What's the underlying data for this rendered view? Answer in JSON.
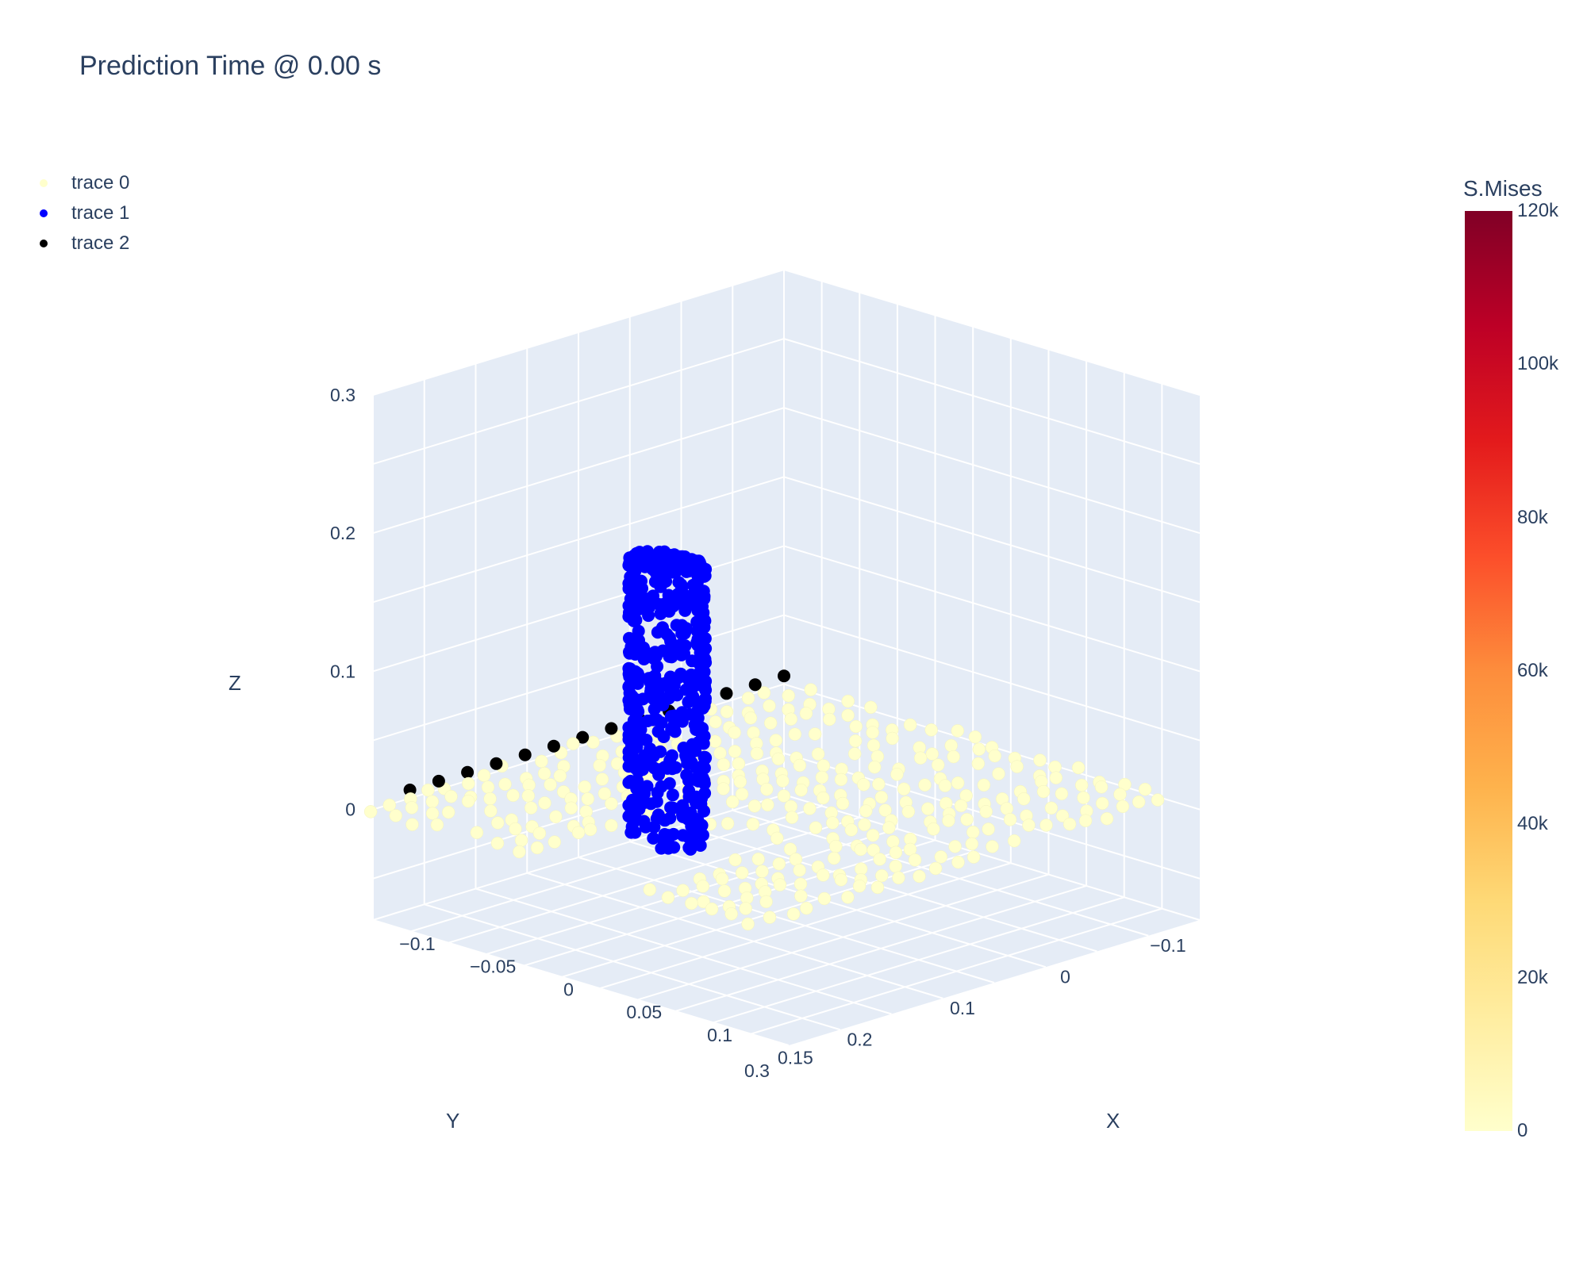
{
  "chart_data": {
    "type": "scatter3d",
    "title": "Prediction Time @ 0.00 s",
    "axes": {
      "x": {
        "label": "X",
        "ticks": [
          "−0.1",
          "−0.05",
          "0",
          "0.05",
          "0.1",
          "0.15"
        ],
        "range": [
          -0.1,
          0.175
        ]
      },
      "y": {
        "label": "Y",
        "ticks": [
          "−0.1",
          "0",
          "0.1",
          "0.2",
          "0.3"
        ],
        "range": [
          -0.1,
          0.3
        ]
      },
      "z": {
        "label": "Z",
        "ticks": [
          "0",
          "0.1",
          "0.2",
          "0.3"
        ],
        "range": [
          -0.08,
          0.3
        ]
      }
    },
    "legend_position": "top-left",
    "series": [
      {
        "name": "trace 0",
        "color": "#ffffcc",
        "shape": "plate grid at z≈0 with a notch, x −0.1→0.15, y −0.1→0.3"
      },
      {
        "name": "trace 1",
        "color": "#0000ff",
        "shape": "cylinder, center x≈0.03, y≈0.2, radius≈0.02, z 0→0.2"
      },
      {
        "name": "trace 2",
        "color": "#000000",
        "shape": "row of points along plate edge x≈−0.1"
      }
    ],
    "colorbar": {
      "title": "S.Mises",
      "range": [
        0,
        120000
      ],
      "ticks": [
        "0",
        "20k",
        "40k",
        "60k",
        "80k",
        "100k",
        "120k"
      ],
      "colorscale": [
        "#ffffcc",
        "#ffeda0",
        "#fed976",
        "#feb24c",
        "#fd8d3c",
        "#fc4e2a",
        "#e31a1c",
        "#bd0026",
        "#800026"
      ]
    }
  }
}
